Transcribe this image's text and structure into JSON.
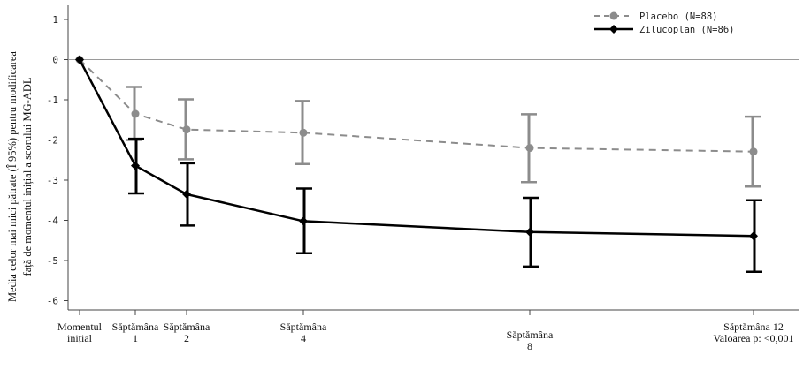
{
  "chart_data": {
    "type": "line",
    "ylabel_lines": [
      "Media celor mai mici pătrate (Î 95%) pentru modificarea",
      "față de momentul inițial a scorului MG-ADL"
    ],
    "x_ticks": [
      {
        "x": 0,
        "lines": [
          "Momentul",
          "inițial"
        ]
      },
      {
        "x": 1,
        "lines": [
          "Săptămâna",
          "1"
        ]
      },
      {
        "x": 2,
        "lines": [
          "Săptămâna",
          "2"
        ]
      },
      {
        "x": 4,
        "lines": [
          "Săptămâna",
          "4"
        ]
      },
      {
        "x": 8,
        "lines": [
          "Săptămâna",
          "8"
        ]
      },
      {
        "x": 12,
        "lines": [
          "Săptămâna 12",
          "Valoarea p: <0,001"
        ]
      }
    ],
    "y_ticks": [
      1,
      0,
      -1,
      -2,
      -3,
      -4,
      -5,
      -6
    ],
    "ylim": [
      -6.2,
      1.4
    ],
    "grid": false,
    "legend_position": "top-right",
    "series": [
      {
        "name": "Placebo (N=88)",
        "color": "#8c8c8c",
        "line_style": "dashed",
        "marker": "circle",
        "points": [
          {
            "x": 0,
            "y": 0,
            "lo": null,
            "hi": null
          },
          {
            "x": 1,
            "y": -1.35,
            "lo": -2.0,
            "hi": -0.68
          },
          {
            "x": 2,
            "y": -1.74,
            "lo": -2.48,
            "hi": -0.99
          },
          {
            "x": 4,
            "y": -1.82,
            "lo": -2.6,
            "hi": -1.03
          },
          {
            "x": 8,
            "y": -2.2,
            "lo": -3.05,
            "hi": -1.36
          },
          {
            "x": 12,
            "y": -2.29,
            "lo": -3.16,
            "hi": -1.42
          }
        ]
      },
      {
        "name": "Zilucoplan (N=86)",
        "color": "#000000",
        "line_style": "solid",
        "marker": "diamond",
        "points": [
          {
            "x": 0,
            "y": 0,
            "lo": null,
            "hi": null
          },
          {
            "x": 1,
            "y": -2.64,
            "lo": -3.33,
            "hi": -1.97
          },
          {
            "x": 2,
            "y": -3.35,
            "lo": -4.13,
            "hi": -2.58
          },
          {
            "x": 4,
            "y": -4.02,
            "lo": -4.82,
            "hi": -3.21
          },
          {
            "x": 8,
            "y": -4.29,
            "lo": -5.15,
            "hi": -3.44
          },
          {
            "x": 12,
            "y": -4.39,
            "lo": -5.28,
            "hi": -3.5
          }
        ]
      }
    ]
  }
}
